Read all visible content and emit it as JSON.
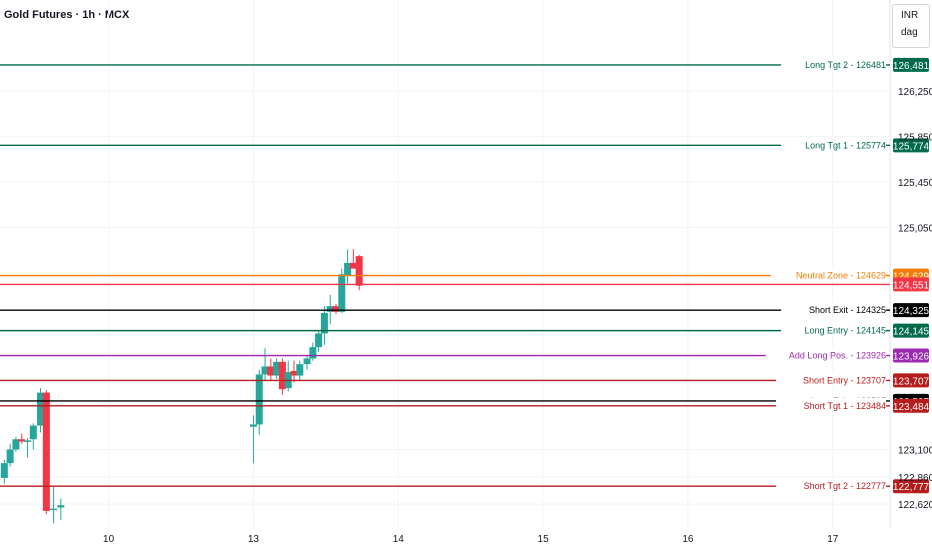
{
  "header": {
    "title": "Gold Futures · 1h · MCX"
  },
  "unit_box": {
    "currency": "INR",
    "unit": "dag"
  },
  "colors": {
    "up": "#26a69a",
    "down": "#f23645",
    "grid": "#f0f3fa",
    "axis_text": "#131722"
  },
  "chart_data": {
    "type": "candlestick",
    "title": "Gold Futures · 1h · MCX",
    "ylim": [
      122480,
      126700
    ],
    "price_ticks": [
      126250,
      125850,
      125450,
      125050,
      123100,
      122860,
      122620
    ],
    "date_ticks": [
      {
        "label": "10",
        "x": 10
      },
      {
        "label": "13",
        "x": 11
      },
      {
        "label": "14",
        "x": 12
      },
      {
        "label": "15",
        "x": 13
      },
      {
        "label": "16",
        "x": 14
      },
      {
        "label": "17",
        "x": 15
      }
    ],
    "xlim": [
      9.25,
      15.05
    ],
    "candles": [
      {
        "x": 9.28,
        "o": 122850,
        "h": 123010,
        "l": 122800,
        "c": 122980
      },
      {
        "x": 9.32,
        "o": 122980,
        "h": 123150,
        "l": 122950,
        "c": 123100
      },
      {
        "x": 9.36,
        "o": 123100,
        "h": 123210,
        "l": 123080,
        "c": 123190
      },
      {
        "x": 9.4,
        "o": 123190,
        "h": 123240,
        "l": 123150,
        "c": 123170
      },
      {
        "x": 9.44,
        "o": 123170,
        "h": 123200,
        "l": 123030,
        "c": 123180
      },
      {
        "x": 9.48,
        "o": 123190,
        "h": 123330,
        "l": 123100,
        "c": 123310
      },
      {
        "x": 9.53,
        "o": 123310,
        "h": 123640,
        "l": 123250,
        "c": 123600
      },
      {
        "x": 9.57,
        "o": 123600,
        "h": 123620,
        "l": 122530,
        "c": 122560
      },
      {
        "x": 9.62,
        "o": 122570,
        "h": 122770,
        "l": 122450,
        "c": 122580
      },
      {
        "x": 9.67,
        "o": 122590,
        "h": 122670,
        "l": 122480,
        "c": 122610
      },
      {
        "x": 11.0,
        "o": 123300,
        "h": 123400,
        "l": 122980,
        "c": 123320
      },
      {
        "x": 11.04,
        "o": 123320,
        "h": 123800,
        "l": 123230,
        "c": 123760
      },
      {
        "x": 11.08,
        "o": 123760,
        "h": 123990,
        "l": 123700,
        "c": 123830
      },
      {
        "x": 11.12,
        "o": 123830,
        "h": 123900,
        "l": 123700,
        "c": 123750
      },
      {
        "x": 11.16,
        "o": 123750,
        "h": 123900,
        "l": 123720,
        "c": 123870
      },
      {
        "x": 11.2,
        "o": 123870,
        "h": 123900,
        "l": 123580,
        "c": 123630
      },
      {
        "x": 11.24,
        "o": 123640,
        "h": 123880,
        "l": 123610,
        "c": 123780
      },
      {
        "x": 11.28,
        "o": 123790,
        "h": 123880,
        "l": 123690,
        "c": 123750
      },
      {
        "x": 11.32,
        "o": 123750,
        "h": 123880,
        "l": 123700,
        "c": 123850
      },
      {
        "x": 11.37,
        "o": 123850,
        "h": 123920,
        "l": 123800,
        "c": 123900
      },
      {
        "x": 11.41,
        "o": 123900,
        "h": 124040,
        "l": 123880,
        "c": 124000
      },
      {
        "x": 11.45,
        "o": 124000,
        "h": 124140,
        "l": 123960,
        "c": 124120
      },
      {
        "x": 11.49,
        "o": 124120,
        "h": 124360,
        "l": 124020,
        "c": 124300
      },
      {
        "x": 11.53,
        "o": 124310,
        "h": 124460,
        "l": 124200,
        "c": 124360
      },
      {
        "x": 11.57,
        "o": 124360,
        "h": 124380,
        "l": 124290,
        "c": 124310
      },
      {
        "x": 11.61,
        "o": 124310,
        "h": 124690,
        "l": 124300,
        "c": 124640
      },
      {
        "x": 11.65,
        "o": 124630,
        "h": 124860,
        "l": 124560,
        "c": 124740
      },
      {
        "x": 11.69,
        "o": 124740,
        "h": 124860,
        "l": 124700,
        "c": 124690
      },
      {
        "x": 11.73,
        "o": 124800,
        "h": 124810,
        "l": 124500,
        "c": 124540
      }
    ],
    "levels": [
      {
        "label": "Long Tgt 2 - 126481",
        "value": 126481,
        "tag": "126,481",
        "color": "#006b4a"
      },
      {
        "label": "Long Tgt 1 - 125774",
        "value": 125774,
        "tag": "125,774",
        "color": "#006b4a"
      },
      {
        "label": "Neutral Zone - 124629",
        "value": 124629,
        "tag": "124,629",
        "color": "#f57c00"
      },
      {
        "label": "",
        "value": 124551,
        "tag": "124,551",
        "color": "#f23645"
      },
      {
        "label": "Short Exit - 124325",
        "value": 124325,
        "tag": "124,325",
        "color": "#000000"
      },
      {
        "label": "Long Entry - 124145",
        "value": 124145,
        "tag": "124,145",
        "color": "#006b4a"
      },
      {
        "label": "Add Long Pos. - 123926",
        "value": 123926,
        "tag": "123,926",
        "color": "#9c27b0"
      },
      {
        "label": "Short Entry - 123707",
        "value": 123707,
        "tag": "123,707",
        "color": "#b71c1c"
      },
      {
        "label": "Long Exit - 123527",
        "value": 123527,
        "tag": "123,527",
        "color": "#000000"
      },
      {
        "label": "Short Tgt 1 - 123484",
        "value": 123484,
        "tag": "123,484",
        "color": "#b71c1c"
      },
      {
        "label": "Short Tgt 2 - 122777",
        "value": 122777,
        "tag": "122,777",
        "color": "#b71c1c"
      }
    ]
  }
}
